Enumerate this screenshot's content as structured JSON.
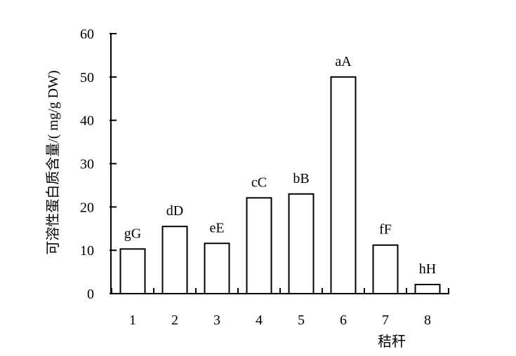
{
  "chart_data": {
    "type": "bar",
    "categories": [
      "1",
      "2",
      "3",
      "4",
      "5",
      "6",
      "7",
      "8"
    ],
    "values": [
      10.3,
      15.5,
      11.6,
      22.1,
      23.0,
      50.0,
      11.2,
      2.1
    ],
    "bar_labels": [
      "gG",
      "dD",
      "eE",
      "cC",
      "bB",
      "aA",
      "fF",
      "hH"
    ],
    "title": "",
    "xlabel": "秸秆",
    "ylabel": "可溶性蛋白质含量/( mg/g DW)",
    "ylim": [
      0,
      60
    ],
    "yticks": [
      0,
      10,
      20,
      30,
      40,
      50,
      60
    ],
    "grid": false,
    "legend": "none",
    "colors": {
      "bar_fill": "#ffffff",
      "bar_stroke": "#000000",
      "axis": "#000000",
      "text": "#000000"
    }
  }
}
